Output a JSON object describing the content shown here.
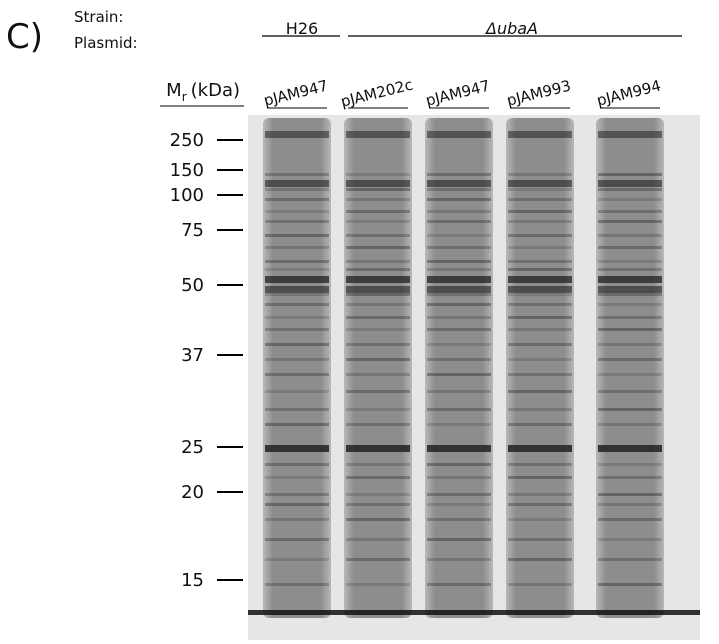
{
  "panel_label": "C)",
  "header": {
    "strain_label": "Strain:",
    "plasmid_label": "Plasmid:"
  },
  "strains": [
    "H26",
    "ΔubaA"
  ],
  "lanes": [
    "pJAM947",
    "pJAM202c",
    "pJAM947",
    "pJAM993",
    "pJAM994"
  ],
  "marker_axis": {
    "symbol": "M",
    "subscript": "r",
    "unit": "(kDa)"
  },
  "markers": [
    250,
    150,
    100,
    75,
    50,
    37,
    25,
    20,
    15
  ]
}
